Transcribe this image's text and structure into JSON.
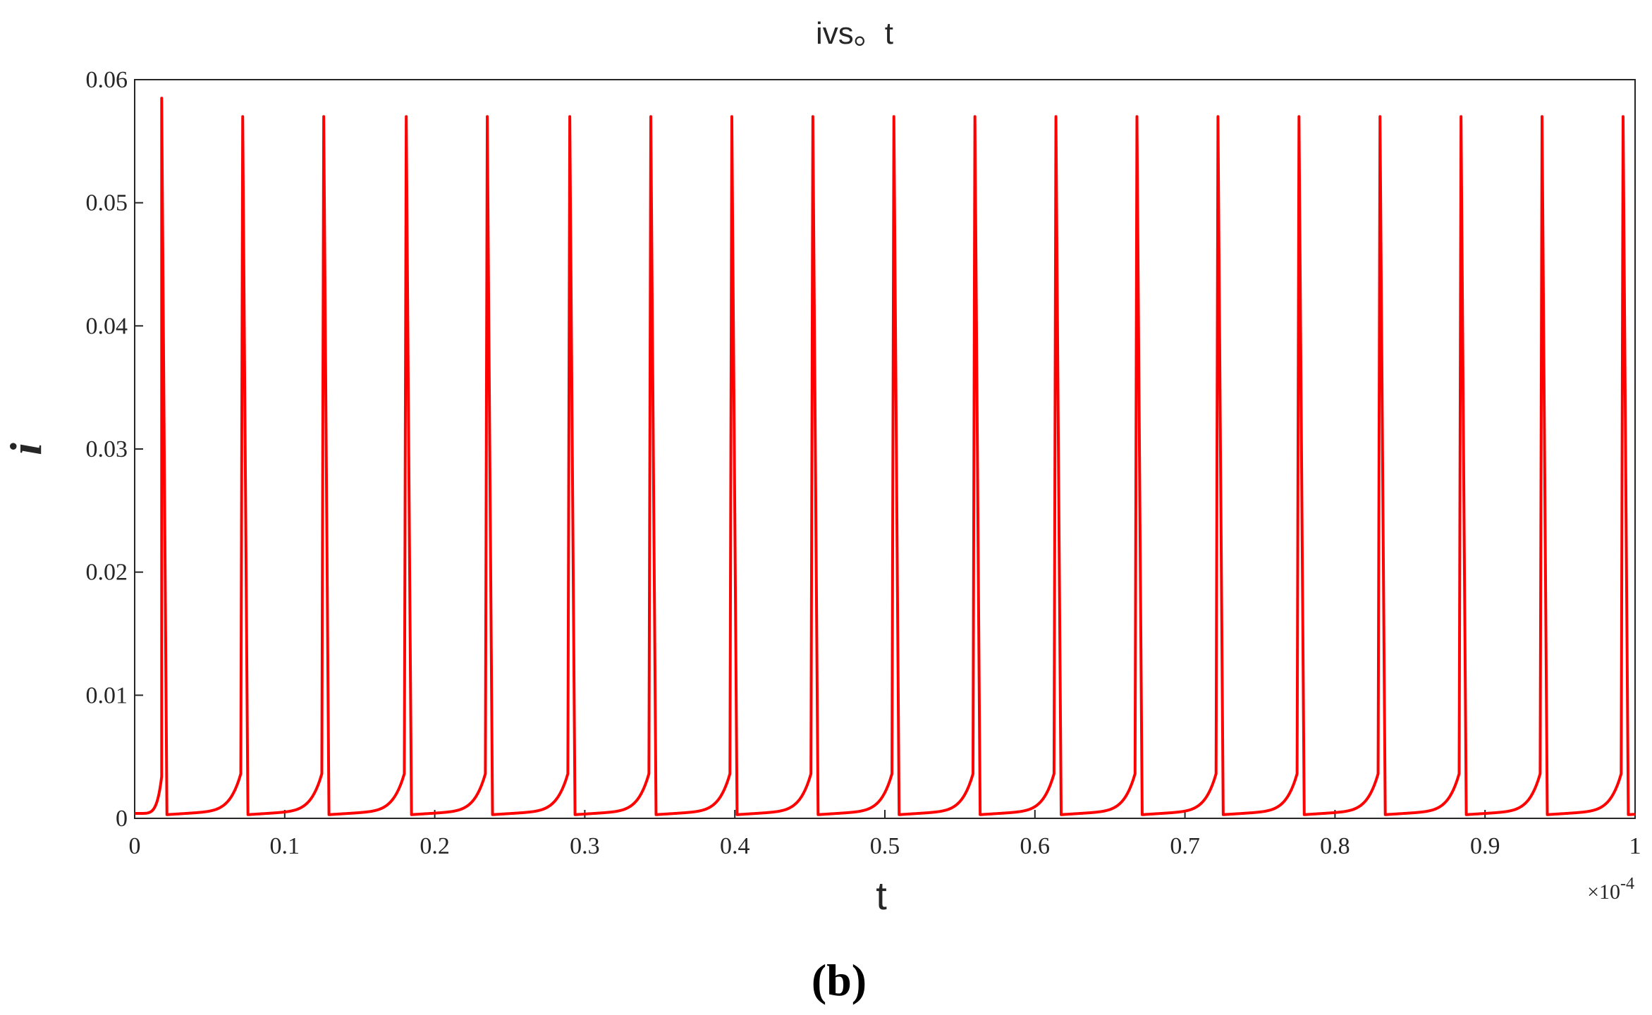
{
  "chart_data": {
    "type": "line",
    "title": "ivs。t",
    "xlabel": "t",
    "ylabel": "i",
    "x_multiplier": "×10",
    "x_multiplier_exp": "-4",
    "panel_label": "(b)",
    "xlim": [
      0,
      1
    ],
    "ylim": [
      0,
      0.06
    ],
    "x_ticks": [
      "0",
      "0.1",
      "0.2",
      "0.3",
      "0.4",
      "0.5",
      "0.6",
      "0.7",
      "0.8",
      "0.9",
      "1"
    ],
    "y_ticks": [
      "0",
      "0.01",
      "0.02",
      "0.03",
      "0.04",
      "0.05",
      "0.06"
    ],
    "grid": false,
    "series": [
      {
        "color": "#ff0000",
        "baseline_min": 0.0003,
        "spike_times": [
          0.018,
          0.072,
          0.126,
          0.181,
          0.235,
          0.29,
          0.344,
          0.398,
          0.452,
          0.506,
          0.56,
          0.614,
          0.668,
          0.722,
          0.776,
          0.83,
          0.884,
          0.938,
          0.992
        ],
        "spike_peaks": [
          0.0585,
          0.057,
          0.057,
          0.057,
          0.057,
          0.057,
          0.057,
          0.057,
          0.057,
          0.057,
          0.057,
          0.057,
          0.057,
          0.057,
          0.057,
          0.057,
          0.057,
          0.057,
          0.057
        ]
      }
    ]
  }
}
